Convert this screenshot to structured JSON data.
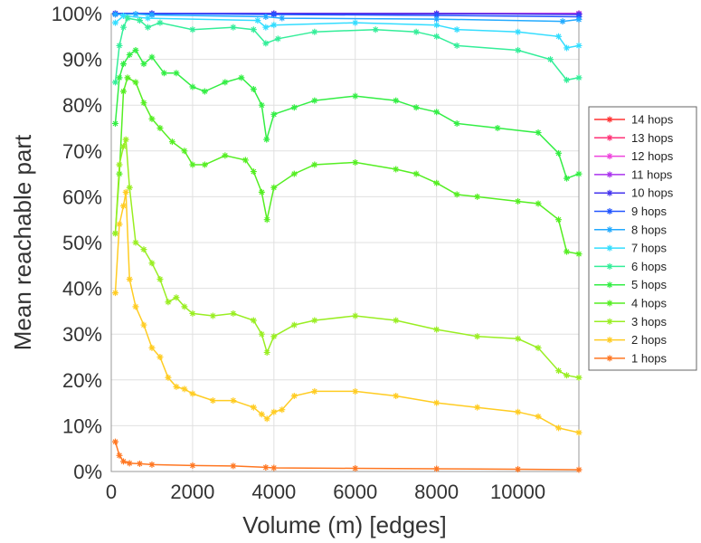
{
  "chart_data": {
    "type": "line",
    "title": "",
    "xlabel": "Volume (m) [edges]",
    "ylabel": "Mean reachable part",
    "xlim": [
      0,
      11500
    ],
    "ylim": [
      0,
      100
    ],
    "xticks": [
      0,
      2000,
      4000,
      6000,
      8000,
      10000
    ],
    "xtick_labels": [
      "0",
      "2000",
      "4000",
      "6000",
      "8000",
      "10000"
    ],
    "yticks": [
      0,
      10,
      20,
      30,
      40,
      50,
      60,
      70,
      80,
      90,
      100
    ],
    "ytick_labels": [
      "0%",
      "10%",
      "20%",
      "30%",
      "40%",
      "50%",
      "60%",
      "70%",
      "80%",
      "90%",
      "100%"
    ],
    "grid": true,
    "legend_position": "right",
    "marker": "asterisk",
    "series": [
      {
        "name": "14 hops",
        "color": "#ff3333",
        "x": [
          100,
          1000,
          4000,
          8000,
          11500
        ],
        "y": [
          100,
          100,
          100,
          100,
          100
        ]
      },
      {
        "name": "13 hops",
        "color": "#ff3377",
        "x": [
          100,
          1000,
          4000,
          8000,
          11500
        ],
        "y": [
          100,
          100,
          100,
          100,
          100
        ]
      },
      {
        "name": "12 hops",
        "color": "#ee44dd",
        "x": [
          100,
          1000,
          4000,
          8000,
          11500
        ],
        "y": [
          100,
          100,
          100,
          100,
          100
        ]
      },
      {
        "name": "11 hops",
        "color": "#aa33ee",
        "x": [
          100,
          1000,
          4000,
          8000,
          11500
        ],
        "y": [
          100,
          100,
          100,
          100,
          100
        ]
      },
      {
        "name": "10 hops",
        "color": "#4433ee",
        "x": [
          100,
          1000,
          4000,
          8000,
          11500
        ],
        "y": [
          100,
          100,
          100,
          100,
          99.8
        ]
      },
      {
        "name": "9 hops",
        "color": "#2255ff",
        "x": [
          100,
          1000,
          4000,
          8000,
          11500
        ],
        "y": [
          100,
          100,
          99.8,
          99.6,
          99.3
        ]
      },
      {
        "name": "8 hops",
        "color": "#22aaff",
        "x": [
          100,
          600,
          1000,
          3800,
          4200,
          8000,
          11100,
          11500
        ],
        "y": [
          99.8,
          99.9,
          99.7,
          99.3,
          99.0,
          98.8,
          98.3,
          98.7
        ]
      },
      {
        "name": "7 hops",
        "color": "#33ddff",
        "x": [
          100,
          300,
          900,
          3600,
          3800,
          4000,
          6000,
          8000,
          8500,
          10000,
          11000,
          11200,
          11500
        ],
        "y": [
          98,
          99.5,
          99,
          98.5,
          97,
          97.5,
          98,
          97.5,
          96.5,
          96,
          95,
          92.5,
          93
        ]
      },
      {
        "name": "6 hops",
        "color": "#33ee99",
        "x": [
          100,
          200,
          300,
          400,
          700,
          900,
          1200,
          2000,
          3000,
          3500,
          3800,
          4100,
          5000,
          6500,
          7500,
          8000,
          8500,
          10000,
          10800,
          11200,
          11500
        ],
        "y": [
          85,
          93,
          97,
          99,
          98.5,
          97,
          98,
          96.5,
          97,
          96.5,
          93.5,
          94.5,
          96,
          96.5,
          96,
          95,
          93,
          92,
          90,
          85.5,
          86
        ]
      },
      {
        "name": "5 hops",
        "color": "#33ee44",
        "x": [
          100,
          200,
          300,
          450,
          600,
          800,
          1000,
          1300,
          1600,
          2000,
          2300,
          2800,
          3200,
          3500,
          3700,
          3820,
          4000,
          4500,
          5000,
          6000,
          7000,
          7500,
          8000,
          8500,
          9500,
          10500,
          11000,
          11200,
          11500
        ],
        "y": [
          76,
          86,
          89,
          91,
          92,
          89,
          90.5,
          87,
          87,
          84,
          83,
          85,
          86,
          83.5,
          80,
          72.5,
          78,
          79.5,
          81,
          82,
          81,
          79.5,
          78.5,
          76,
          75,
          74,
          69.5,
          64,
          65
        ]
      },
      {
        "name": "4 hops",
        "color": "#55ee22",
        "x": [
          100,
          200,
          300,
          400,
          600,
          800,
          1000,
          1200,
          1500,
          1800,
          2000,
          2300,
          2800,
          3300,
          3500,
          3700,
          3830,
          4000,
          4500,
          5000,
          6000,
          7000,
          7500,
          8000,
          8500,
          9000,
          10000,
          10500,
          11000,
          11200,
          11500
        ],
        "y": [
          52,
          65,
          83,
          86,
          85,
          80.5,
          77,
          75,
          72,
          70,
          67,
          67,
          69,
          68,
          65.5,
          61,
          55,
          62,
          65,
          67,
          67.5,
          66,
          65,
          63,
          60.5,
          60,
          59,
          58.5,
          55,
          48,
          47.5
        ]
      },
      {
        "name": "3 hops",
        "color": "#99ee22",
        "x": [
          100,
          200,
          300,
          360,
          450,
          600,
          800,
          1000,
          1200,
          1400,
          1600,
          1800,
          2000,
          2500,
          3000,
          3500,
          3700,
          3830,
          4000,
          4500,
          5000,
          6000,
          7000,
          8000,
          9000,
          10000,
          10500,
          11000,
          11200,
          11500
        ],
        "y": [
          52,
          67,
          71,
          72.5,
          62,
          50,
          48.5,
          45.5,
          42,
          37,
          38,
          36,
          34.5,
          34,
          34.5,
          33,
          30,
          26,
          29.5,
          32,
          33,
          34,
          33,
          31,
          29.5,
          29,
          27,
          22,
          21,
          20.5
        ]
      },
      {
        "name": "2 hops",
        "color": "#ffcc22",
        "x": [
          100,
          200,
          300,
          360,
          450,
          600,
          800,
          1000,
          1200,
          1400,
          1600,
          1800,
          2000,
          2500,
          3000,
          3500,
          3700,
          3830,
          4000,
          4200,
          4500,
          5000,
          6000,
          7000,
          8000,
          9000,
          10000,
          10500,
          11000,
          11500
        ],
        "y": [
          39,
          54,
          58,
          61,
          42,
          36,
          32,
          27,
          25,
          20.5,
          18.5,
          18,
          17,
          15.5,
          15.5,
          14,
          12.5,
          11.5,
          13,
          13.5,
          16.5,
          17.5,
          17.5,
          16.5,
          15,
          14,
          13,
          12,
          9.5,
          8.5
        ]
      },
      {
        "name": "1 hops",
        "color": "#ff7722",
        "x": [
          100,
          200,
          300,
          450,
          700,
          1000,
          2000,
          3000,
          3800,
          4000,
          6000,
          8000,
          10000,
          11500
        ],
        "y": [
          6.5,
          3.5,
          2.2,
          1.8,
          1.7,
          1.5,
          1.3,
          1.2,
          0.9,
          0.8,
          0.7,
          0.6,
          0.5,
          0.4
        ]
      }
    ]
  }
}
